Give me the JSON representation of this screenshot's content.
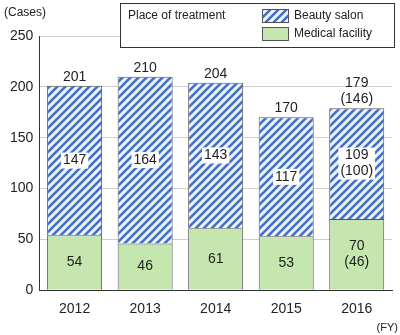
{
  "chart_data": {
    "type": "bar",
    "stacked": true,
    "y_label": "(Cases)",
    "x_label": "(FY)",
    "legend_title": "Place of treatment",
    "legend": "top-right",
    "categories": [
      "2012",
      "2013",
      "2014",
      "2015",
      "2016"
    ],
    "series": [
      {
        "name": "Medical facility",
        "color": "#c6e6b0",
        "values": [
          54,
          46,
          61,
          53,
          70
        ],
        "value_labels": [
          "54",
          "46",
          "61",
          "53",
          [
            "70",
            "(46)"
          ]
        ]
      },
      {
        "name": "Beauty salon",
        "color": "#3f6fc6",
        "values": [
          147,
          164,
          143,
          117,
          109
        ],
        "value_labels": [
          "147",
          "164",
          "143",
          "117",
          [
            "109",
            "(100)"
          ]
        ]
      }
    ],
    "totals": [
      201,
      210,
      204,
      170,
      179
    ],
    "total_labels": [
      "201",
      "210",
      "204",
      "170",
      [
        "179",
        "(146)"
      ]
    ],
    "ylim": [
      0,
      250
    ],
    "yticks": [
      0,
      50,
      100,
      150,
      200,
      250
    ],
    "grid": true,
    "data_labels": true
  }
}
